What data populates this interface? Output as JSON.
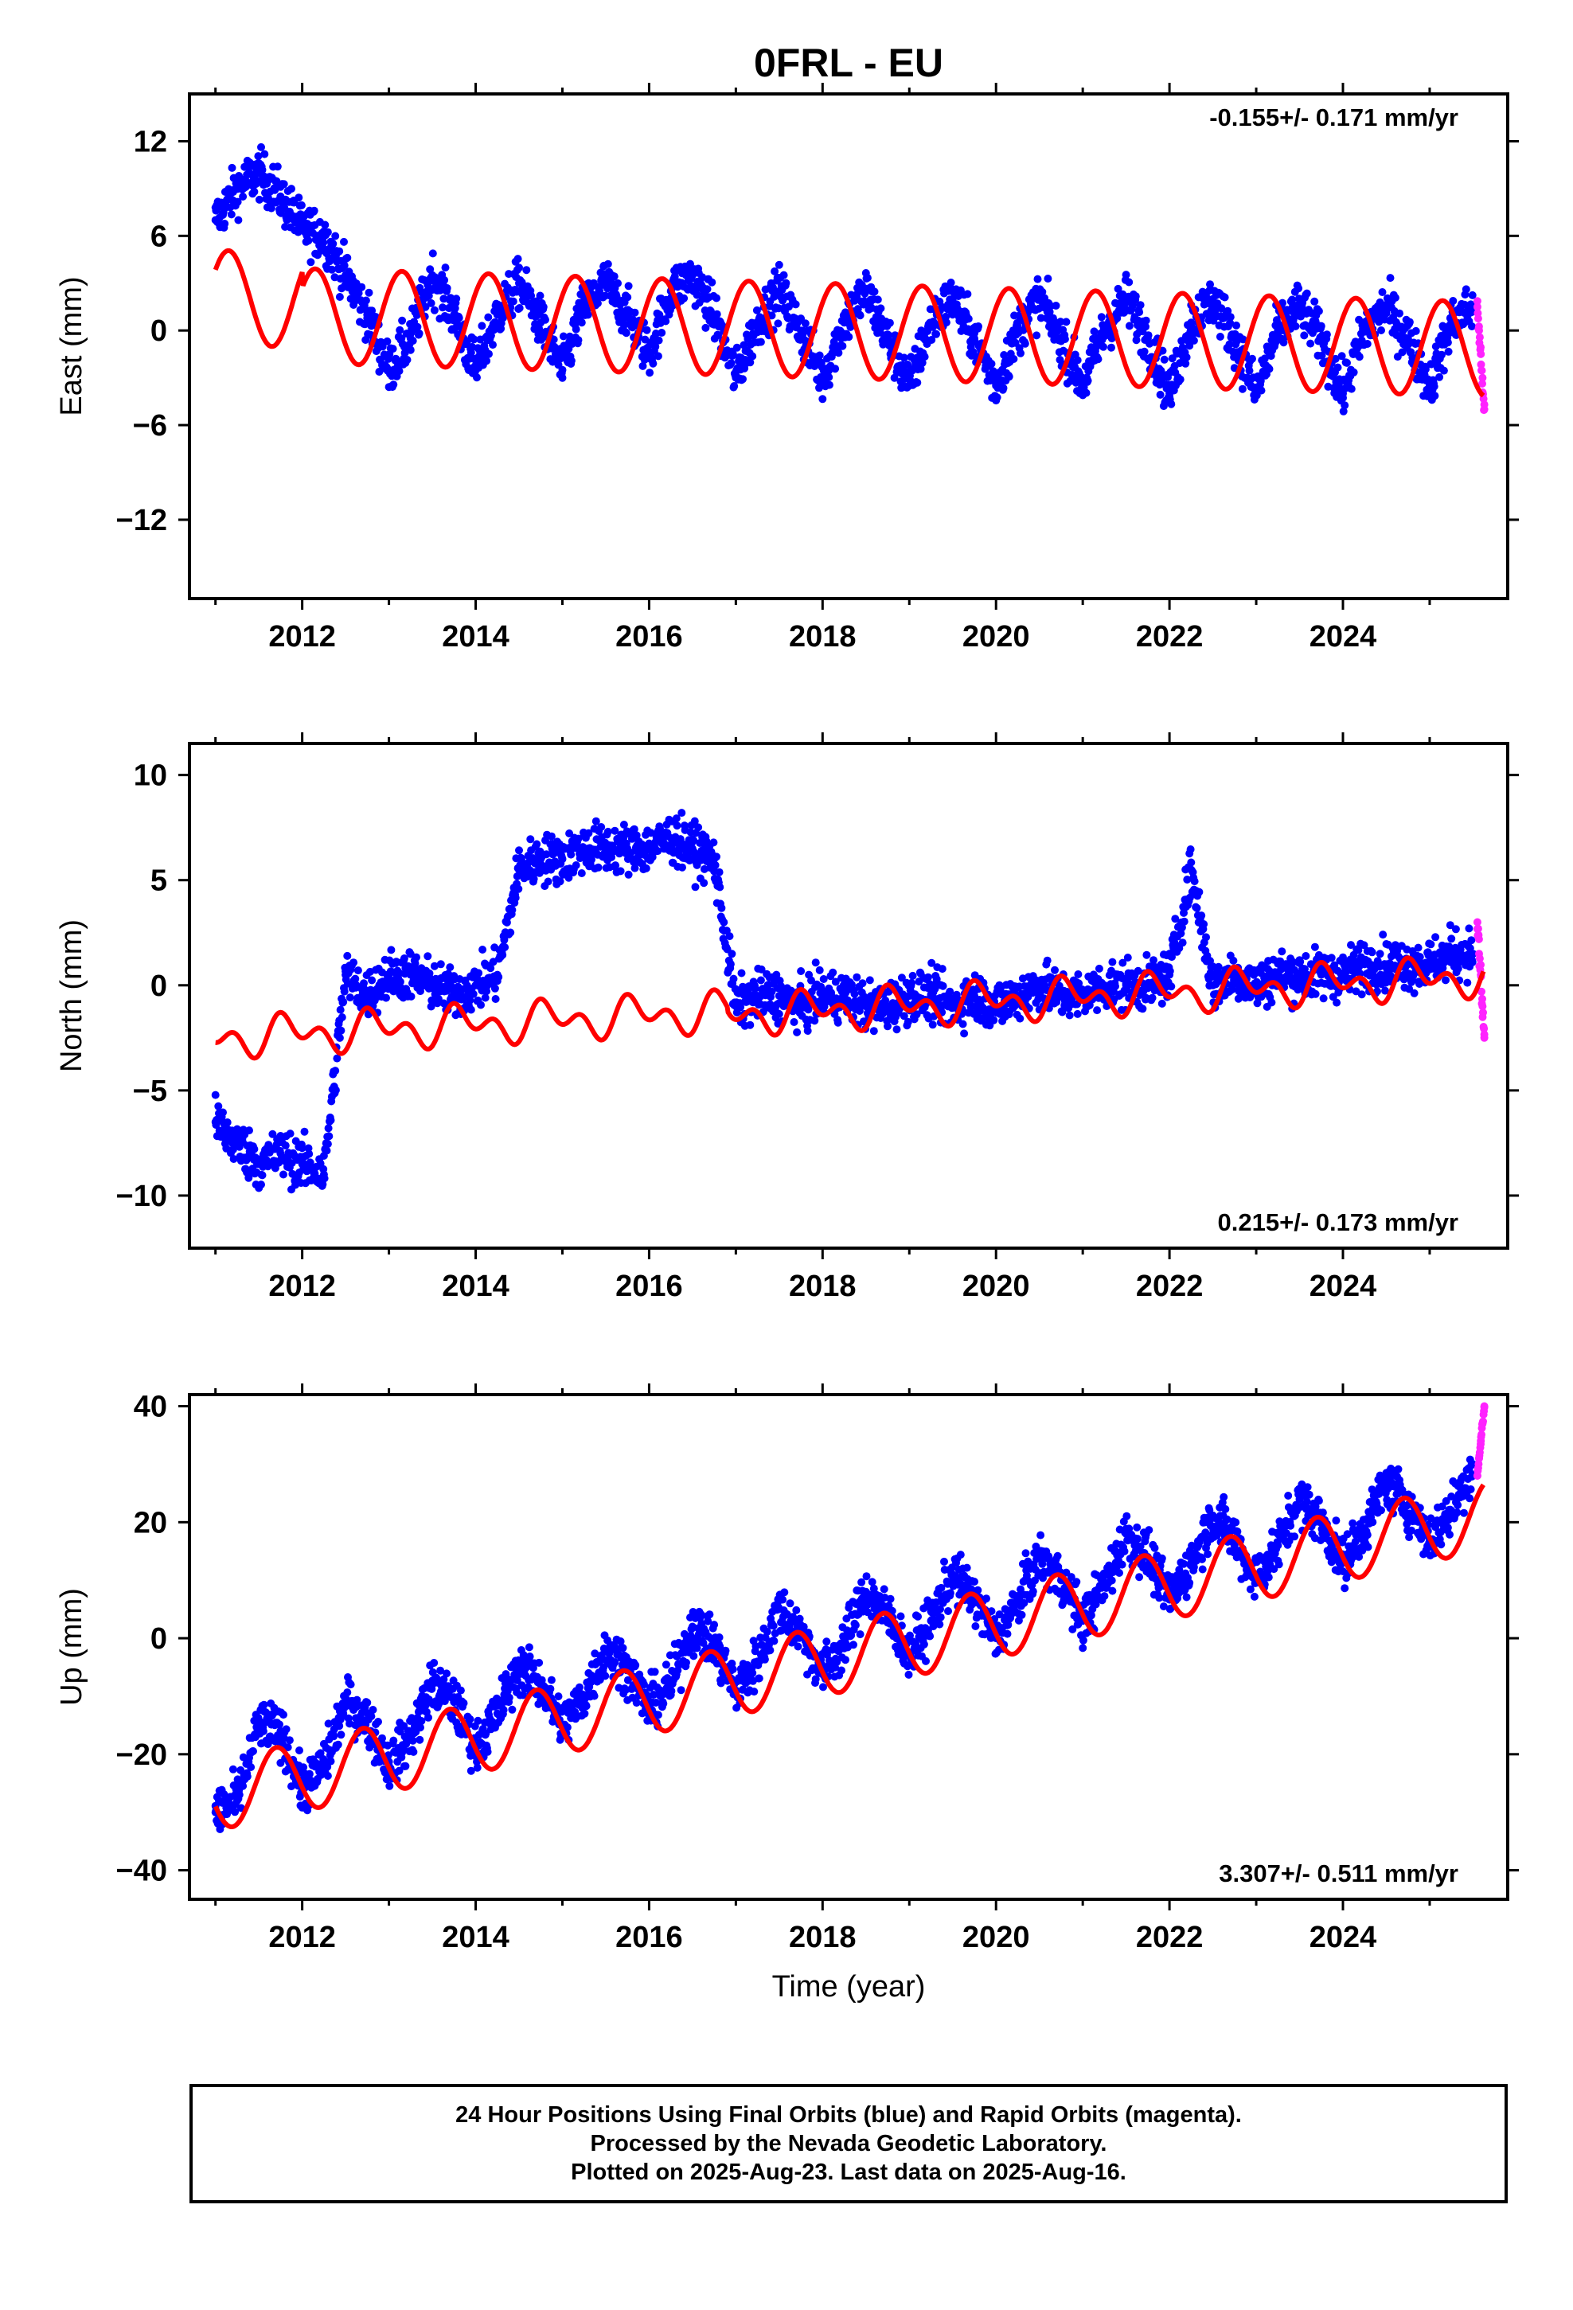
{
  "title": "0FRL - EU",
  "xlabel": "Time (year)",
  "footer": {
    "line1": "24 Hour Positions Using Final Orbits (blue) and Rapid Orbits (magenta).",
    "line2": "Processed by the Nevada Geodetic Laboratory.",
    "line3": "Plotted on 2025-Aug-23. Last data on 2025-Aug-16."
  },
  "colors": {
    "final_orbits": "#0000ff",
    "rapid_orbits": "#ff22ff",
    "model_fit": "#ff0000",
    "axes": "#000000"
  },
  "chart_data": [
    {
      "type": "scatter",
      "component": "east",
      "ylabel": "East (mm)",
      "rate_label": "-0.155+/- 0.171 mm/yr",
      "rate_position": "top-right",
      "xlim": [
        2010.7,
        2025.9
      ],
      "ylim": [
        -17,
        15
      ],
      "xticks": [
        2012,
        2014,
        2016,
        2018,
        2020,
        2022,
        2024
      ],
      "yticks": [
        12,
        6,
        0,
        -6,
        -12
      ],
      "grid": false,
      "series": [
        {
          "name": "Final Orbits",
          "color": "#0000ff",
          "x": [
            2011.0,
            2011.25,
            2011.5,
            2011.75,
            2012.0,
            2012.25,
            2012.5,
            2012.75,
            2013.0,
            2013.25,
            2013.5,
            2013.75,
            2014.0,
            2014.25,
            2014.5,
            2014.75,
            2015.0,
            2015.25,
            2015.5,
            2015.75,
            2016.0,
            2016.25,
            2016.5,
            2016.75,
            2017.0,
            2017.25,
            2017.5,
            2017.75,
            2018.0,
            2018.25,
            2018.5,
            2018.75,
            2019.0,
            2019.25,
            2019.5,
            2019.75,
            2020.0,
            2020.25,
            2020.5,
            2020.75,
            2021.0,
            2021.25,
            2021.5,
            2021.75,
            2022.0,
            2022.25,
            2022.5,
            2022.75,
            2023.0,
            2023.25,
            2023.5,
            2023.75,
            2024.0,
            2024.25,
            2024.5,
            2024.75,
            2025.0,
            2025.25,
            2025.5
          ],
          "y": [
            7.0,
            9.0,
            10.0,
            8.5,
            6.5,
            6.0,
            3.5,
            1.0,
            -2.5,
            -0.5,
            3.5,
            1.0,
            -2.5,
            1.0,
            3.0,
            0.5,
            -2.5,
            1.5,
            3.0,
            1.0,
            -1.5,
            2.5,
            3.5,
            1.0,
            -3.0,
            0.5,
            2.5,
            0.0,
            -3.0,
            0.5,
            2.5,
            -0.5,
            -3.5,
            0.5,
            2.0,
            -0.5,
            -3.5,
            0.0,
            2.0,
            -0.5,
            -3.5,
            0.0,
            2.0,
            -0.5,
            -4.0,
            0.5,
            2.0,
            -0.5,
            -4.0,
            0.0,
            1.5,
            -0.5,
            -4.0,
            0.0,
            1.5,
            -0.5,
            -3.5,
            0.5,
            1.5
          ]
        },
        {
          "name": "Rapid Orbits",
          "color": "#ff22ff",
          "x": [
            2025.55,
            2025.57,
            2025.59,
            2025.61,
            2025.63
          ],
          "y": [
            1.5,
            0.0,
            -1.5,
            -3.0,
            -5.0
          ]
        },
        {
          "name": "Model",
          "color": "#ff0000",
          "model": {
            "offset_pre": 1.0,
            "offset_post": 0.0,
            "step_year": 2012.0,
            "rate": -0.155,
            "amp1": 3.0,
            "phase1": 0.1,
            "amp2": 0.0,
            "ref_year": 2018.0
          }
        }
      ]
    },
    {
      "type": "scatter",
      "component": "north",
      "ylabel": "North (mm)",
      "rate_label": "0.215+/- 0.173 mm/yr",
      "rate_position": "bottom-right",
      "xlim": [
        2010.7,
        2025.9
      ],
      "ylim": [
        -12.5,
        11.5
      ],
      "xticks": [
        2012,
        2014,
        2016,
        2018,
        2020,
        2022,
        2024
      ],
      "yticks": [
        10,
        5,
        0,
        -5,
        -10
      ],
      "grid": false,
      "series": [
        {
          "name": "Final Orbits",
          "color": "#0000ff",
          "x": [
            2011.0,
            2011.25,
            2011.5,
            2011.75,
            2012.0,
            2012.25,
            2012.5,
            2012.75,
            2013.0,
            2013.25,
            2013.5,
            2013.75,
            2014.0,
            2014.25,
            2014.5,
            2014.75,
            2015.0,
            2015.25,
            2015.5,
            2015.75,
            2016.0,
            2016.25,
            2016.5,
            2016.75,
            2017.0,
            2017.25,
            2017.5,
            2017.75,
            2018.0,
            2018.25,
            2018.5,
            2018.75,
            2019.0,
            2019.25,
            2019.5,
            2019.75,
            2020.0,
            2020.25,
            2020.5,
            2020.75,
            2021.0,
            2021.25,
            2021.5,
            2021.75,
            2022.0,
            2022.25,
            2022.5,
            2022.75,
            2023.0,
            2023.25,
            2023.5,
            2023.75,
            2024.0,
            2024.25,
            2024.5,
            2024.75,
            2025.0,
            2025.25,
            2025.5
          ],
          "y": [
            -6.5,
            -7.5,
            -8.5,
            -8.0,
            -8.5,
            -9.0,
            0.5,
            -0.5,
            0.5,
            0.5,
            0.0,
            -0.5,
            0.0,
            0.5,
            5.5,
            6.0,
            6.0,
            6.5,
            6.5,
            6.5,
            6.5,
            7.0,
            6.5,
            6.0,
            -1.0,
            -0.5,
            -0.5,
            -1.0,
            -0.5,
            -0.5,
            -1.0,
            -1.0,
            -0.5,
            -0.5,
            -1.0,
            -0.5,
            -1.0,
            -0.5,
            0.0,
            -0.5,
            -0.5,
            0.0,
            0.0,
            0.0,
            0.5,
            5.5,
            0.0,
            0.5,
            0.0,
            0.5,
            0.5,
            0.5,
            0.5,
            1.0,
            1.0,
            1.0,
            1.0,
            1.5,
            1.5
          ]
        },
        {
          "name": "Rapid Orbits",
          "color": "#ff22ff",
          "x": [
            2025.55,
            2025.57,
            2025.59,
            2025.61,
            2025.63
          ],
          "y": [
            3.0,
            1.5,
            0.5,
            -1.0,
            -2.5
          ]
        },
        {
          "name": "Model",
          "color": "#ff0000",
          "model": {
            "offset_pre": -1.0,
            "offset_post": -1.2,
            "step_year": 2016.9,
            "rate": 0.215,
            "amp1": 0.6,
            "phase1": 0.4,
            "amp2": 0.6,
            "ref_year": 2018.0
          }
        }
      ]
    },
    {
      "type": "scatter",
      "component": "up",
      "ylabel": "Up (mm)",
      "rate_label": "3.307+/- 0.511 mm/yr",
      "rate_position": "bottom-right",
      "xlim": [
        2010.7,
        2025.9
      ],
      "ylim": [
        -45,
        42
      ],
      "xticks": [
        2012,
        2014,
        2016,
        2018,
        2020,
        2022,
        2024
      ],
      "yticks": [
        40,
        20,
        0,
        -20,
        -40
      ],
      "grid": false,
      "series": [
        {
          "name": "Final Orbits",
          "color": "#0000ff",
          "x": [
            2011.0,
            2011.25,
            2011.5,
            2011.75,
            2012.0,
            2012.25,
            2012.5,
            2012.75,
            2013.0,
            2013.25,
            2013.5,
            2013.75,
            2014.0,
            2014.25,
            2014.5,
            2014.75,
            2015.0,
            2015.25,
            2015.5,
            2015.75,
            2016.0,
            2016.25,
            2016.5,
            2016.75,
            2017.0,
            2017.25,
            2017.5,
            2017.75,
            2018.0,
            2018.25,
            2018.5,
            2018.75,
            2019.0,
            2019.25,
            2019.5,
            2019.75,
            2020.0,
            2020.25,
            2020.5,
            2020.75,
            2021.0,
            2021.25,
            2021.5,
            2021.75,
            2022.0,
            2022.25,
            2022.5,
            2022.75,
            2023.0,
            2023.25,
            2023.5,
            2023.75,
            2024.0,
            2024.25,
            2024.5,
            2024.75,
            2025.0,
            2025.25,
            2025.5
          ],
          "y": [
            -30,
            -28,
            -15,
            -16,
            -26,
            -22,
            -11,
            -14,
            -22,
            -17,
            -8,
            -11,
            -19,
            -13,
            -5,
            -8,
            -15,
            -10,
            -2,
            -5,
            -12,
            -8,
            2,
            -1,
            -9,
            -4,
            5,
            1,
            -6,
            -1,
            8,
            4,
            -3,
            3,
            11,
            7,
            0,
            6,
            14,
            10,
            3,
            9,
            18,
            14,
            7,
            13,
            21,
            17,
            10,
            16,
            24,
            20,
            13,
            19,
            27,
            23,
            17,
            22,
            30
          ]
        },
        {
          "name": "Rapid Orbits",
          "color": "#ff22ff",
          "x": [
            2025.55,
            2025.57,
            2025.59,
            2025.61,
            2025.63
          ],
          "y": [
            28,
            31,
            34,
            37,
            40
          ]
        },
        {
          "name": "Model",
          "color": "#ff0000",
          "model": {
            "offset_pre": -4.0,
            "offset_post": -4.0,
            "step_year": 2012.0,
            "rate": 3.307,
            "amp1": 6.0,
            "phase1": -0.45,
            "amp2": 0.0,
            "ref_year": 2018.0
          }
        }
      ]
    }
  ]
}
